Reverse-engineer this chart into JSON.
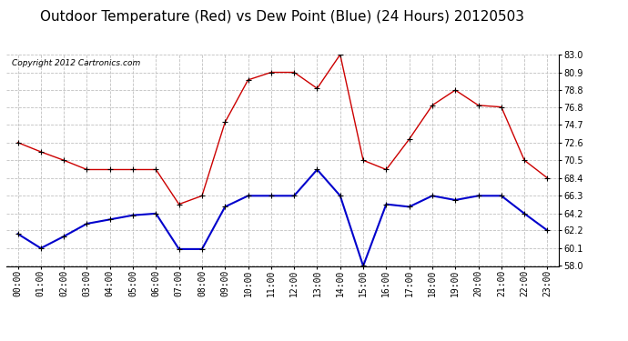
{
  "title": "Outdoor Temperature (Red) vs Dew Point (Blue) (24 Hours) 20120503",
  "copyright": "Copyright 2012 Cartronics.com",
  "hours": [
    0,
    1,
    2,
    3,
    4,
    5,
    6,
    7,
    8,
    9,
    10,
    11,
    12,
    13,
    14,
    15,
    16,
    17,
    18,
    19,
    20,
    21,
    22,
    23
  ],
  "hour_labels": [
    "00:00",
    "01:00",
    "02:00",
    "03:00",
    "04:00",
    "05:00",
    "06:00",
    "07:00",
    "08:00",
    "09:00",
    "10:00",
    "11:00",
    "12:00",
    "13:00",
    "14:00",
    "15:00",
    "16:00",
    "17:00",
    "18:00",
    "19:00",
    "20:00",
    "21:00",
    "22:00",
    "23:00"
  ],
  "temp_red": [
    72.6,
    71.5,
    70.5,
    69.4,
    69.4,
    69.4,
    69.4,
    65.3,
    66.3,
    75.0,
    80.0,
    80.9,
    80.9,
    79.0,
    83.0,
    70.5,
    69.4,
    73.0,
    77.0,
    78.8,
    77.0,
    76.8,
    70.5,
    68.4
  ],
  "dew_blue": [
    61.8,
    60.1,
    61.5,
    63.0,
    63.5,
    64.0,
    64.2,
    60.0,
    60.0,
    65.0,
    66.3,
    66.3,
    66.3,
    69.4,
    66.3,
    58.0,
    65.3,
    65.0,
    66.3,
    65.8,
    66.3,
    66.3,
    64.2,
    62.2
  ],
  "ylim_min": 58.0,
  "ylim_max": 83.0,
  "yticks": [
    58.0,
    60.1,
    62.2,
    64.2,
    66.3,
    68.4,
    70.5,
    72.6,
    74.7,
    76.8,
    78.8,
    80.9,
    83.0
  ],
  "red_color": "#cc0000",
  "blue_color": "#0000cc",
  "bg_color": "#ffffff",
  "grid_color": "#c0c0c0",
  "title_fontsize": 11,
  "copyright_fontsize": 6.5,
  "tick_fontsize": 7
}
